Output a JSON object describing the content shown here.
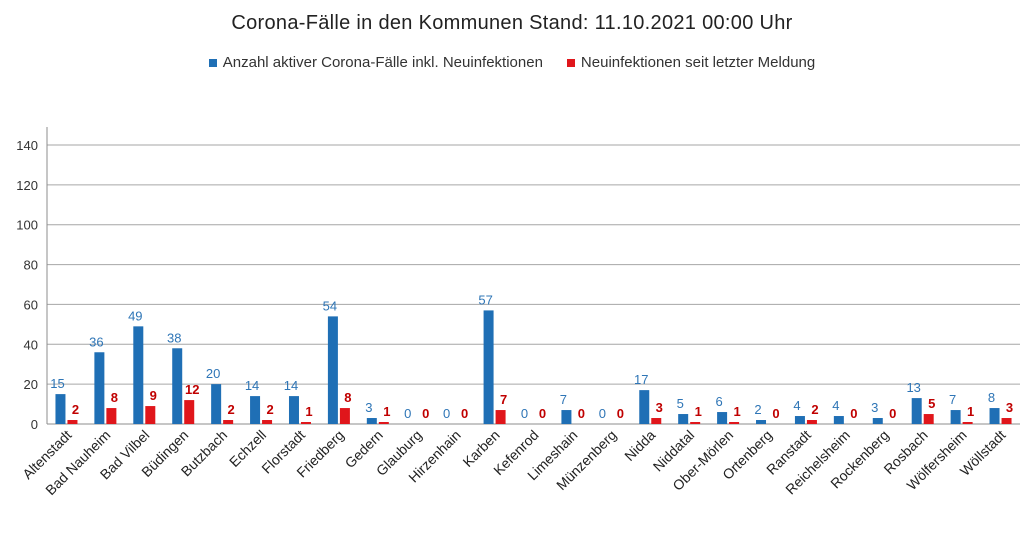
{
  "chart_data": {
    "type": "bar",
    "title": "Corona-Fälle in den Kommunen Stand: 11.10.2021 00:00 Uhr",
    "xlabel": "",
    "ylabel": "",
    "ylim": [
      0,
      140
    ],
    "yticks": [
      0,
      20,
      40,
      60,
      80,
      100,
      120,
      140
    ],
    "grid": true,
    "legend_position": "top",
    "categories": [
      "Altenstadt",
      "Bad Nauheim",
      "Bad Vilbel",
      "Büdingen",
      "Butzbach",
      "Echzell",
      "Florstadt",
      "Friedberg",
      "Gedern",
      "Glauburg",
      "Hirzenhain",
      "Karben",
      "Kefenrod",
      "Limeshain",
      "Münzenberg",
      "Nidda",
      "Niddatal",
      "Ober-Mörlen",
      "Ortenberg",
      "Ranstadt",
      "Reichelsheim",
      "Rockenberg",
      "Rosbach",
      "Wölfersheim",
      "Wöllstadt"
    ],
    "series": [
      {
        "name": "Anzahl aktiver Corona-Fälle inkl. Neuinfektionen",
        "color": "#1f6fb5",
        "values": [
          15,
          36,
          49,
          38,
          20,
          14,
          14,
          54,
          3,
          0,
          0,
          57,
          0,
          7,
          0,
          17,
          5,
          6,
          2,
          4,
          4,
          3,
          13,
          7,
          8
        ]
      },
      {
        "name": "Neuinfektionen seit letzter Meldung",
        "color": "#e0161b",
        "values": [
          2,
          8,
          9,
          12,
          2,
          2,
          1,
          8,
          1,
          0,
          0,
          7,
          0,
          0,
          0,
          3,
          1,
          1,
          0,
          2,
          0,
          0,
          5,
          1,
          3
        ]
      }
    ]
  }
}
